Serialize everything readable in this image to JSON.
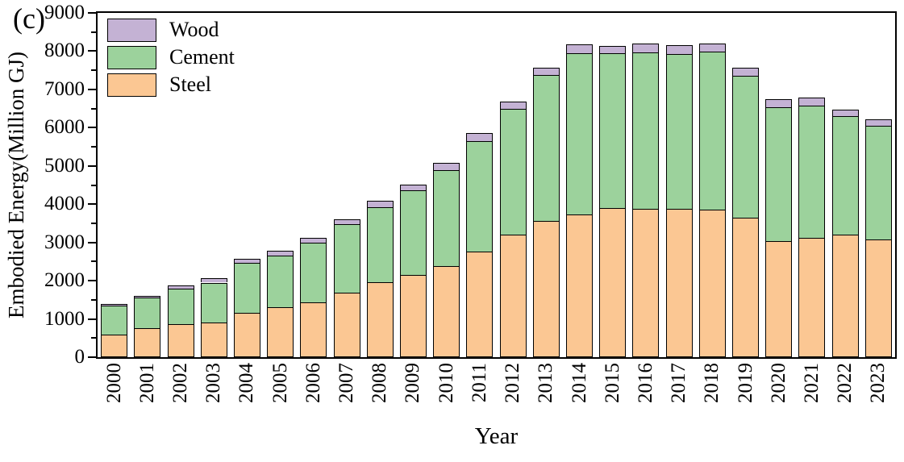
{
  "figure": {
    "panel_label": "(c)"
  },
  "chart_data": {
    "type": "bar",
    "stacked": true,
    "title": "",
    "xlabel": "Year",
    "ylabel": "Embodied Energy(Million GJ)",
    "ylim": [
      0,
      9000
    ],
    "y_major_ticks": [
      0,
      1000,
      2000,
      3000,
      4000,
      5000,
      6000,
      7000,
      8000,
      9000
    ],
    "y_minor_step": 500,
    "grid": false,
    "axis_color": "#000000",
    "categories": [
      "2000",
      "2001",
      "2002",
      "2003",
      "2004",
      "2005",
      "2006",
      "2007",
      "2008",
      "2009",
      "2010",
      "2011",
      "2012",
      "2013",
      "2014",
      "2015",
      "2016",
      "2017",
      "2018",
      "2019",
      "2020",
      "2021",
      "2022",
      "2023"
    ],
    "series": [
      {
        "name": "Steel",
        "color": "#FBC793",
        "values": [
          600,
          760,
          870,
          915,
          1150,
          1300,
          1440,
          1690,
          1950,
          2160,
          2375,
          2755,
          3205,
          3555,
          3725,
          3905,
          3885,
          3885,
          3865,
          3655,
          3040,
          3110,
          3210,
          3075
        ]
      },
      {
        "name": "Cement",
        "color": "#9CD29C",
        "values": [
          740,
          795,
          920,
          1035,
          1310,
          1360,
          1550,
          1790,
          1970,
          2195,
          2525,
          2900,
          3285,
          3820,
          4225,
          4035,
          4075,
          4045,
          4115,
          3710,
          3490,
          3465,
          3100,
          2975
        ]
      },
      {
        "name": "Wood",
        "color": "#C4B2D4",
        "values": [
          50,
          55,
          90,
          120,
          105,
          120,
          120,
          135,
          160,
          165,
          180,
          195,
          200,
          190,
          235,
          205,
          245,
          220,
          220,
          210,
          210,
          205,
          170,
          165
        ]
      }
    ],
    "totals": [
      1390,
      1610,
      1880,
      2070,
      2565,
      2780,
      3110,
      3615,
      4080,
      4520,
      5080,
      5850,
      6690,
      7565,
      8185,
      8145,
      8205,
      8150,
      8200,
      7575,
      6740,
      6780,
      6480,
      6215
    ],
    "legend": {
      "position": "top-left",
      "order": [
        "Wood",
        "Cement",
        "Steel"
      ]
    }
  }
}
